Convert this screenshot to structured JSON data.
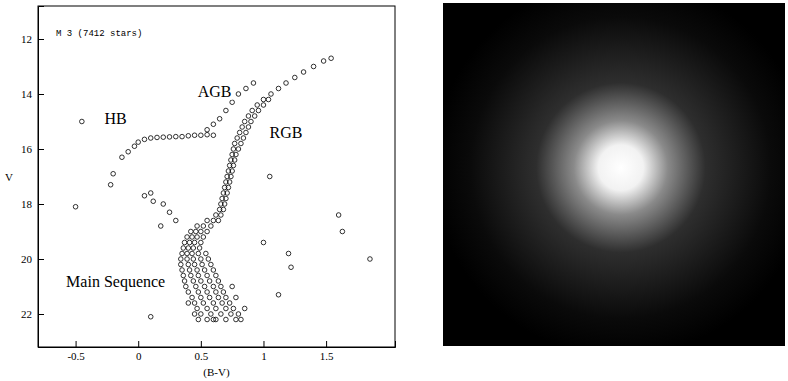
{
  "chart_data": {
    "type": "scatter",
    "title": "M 3 (7412 stars)",
    "x_label": "(B-V)",
    "y_label": "V",
    "marker": "open_circle",
    "color": "#000000",
    "xlim": [
      -0.8,
      2.05
    ],
    "ylim": [
      23.2,
      10.8
    ],
    "xticks": [
      -0.5,
      0,
      0.5,
      1,
      1.5
    ],
    "yticks": [
      12,
      14,
      16,
      18,
      20,
      22
    ],
    "annotations": [
      {
        "text": "HB",
        "x": -0.18,
        "y": 15.1
      },
      {
        "text": "AGB",
        "x": 0.61,
        "y": 14.1
      },
      {
        "text": "RGB",
        "x": 1.18,
        "y": 15.6
      },
      {
        "text": "Main Sequence",
        "x": -0.18,
        "y": 21.0
      }
    ],
    "x": [
      0.55,
      0.62,
      0.7,
      0.78,
      0.82,
      0.48,
      0.6,
      0.5,
      0.58,
      0.66,
      0.74,
      0.8,
      0.45,
      0.47,
      0.55,
      0.62,
      0.7,
      0.76,
      0.85,
      0.45,
      0.52,
      0.6,
      0.67,
      0.73,
      0.4,
      0.43,
      0.5,
      0.57,
      0.64,
      0.7,
      0.78,
      0.4,
      0.48,
      0.55,
      0.62,
      0.68,
      0.38,
      0.46,
      0.53,
      0.6,
      0.66,
      0.75,
      0.37,
      0.44,
      0.5,
      0.57,
      0.64,
      0.36,
      0.42,
      0.48,
      0.55,
      0.62,
      0.35,
      0.41,
      0.47,
      0.53,
      0.6,
      0.34,
      0.4,
      0.45,
      0.51,
      0.58,
      0.34,
      0.39,
      0.44,
      0.5,
      0.56,
      0.35,
      0.39,
      0.43,
      0.48,
      0.54,
      0.36,
      0.4,
      0.44,
      0.49,
      0.37,
      0.41,
      0.45,
      0.5,
      0.39,
      0.43,
      0.47,
      0.52,
      0.42,
      0.46,
      0.5,
      0.55,
      0.47,
      0.52,
      0.58,
      0.55,
      0.6,
      0.64,
      0.62,
      0.66,
      0.65,
      0.68,
      0.66,
      0.69,
      0.67,
      0.7,
      0.68,
      0.71,
      0.69,
      0.72,
      0.7,
      0.73,
      0.71,
      0.74,
      0.72,
      0.75,
      0.73,
      0.76,
      0.74,
      0.77,
      0.75,
      0.78,
      0.76,
      0.8,
      0.77,
      0.82,
      0.79,
      0.84,
      0.81,
      0.86,
      0.83,
      0.88,
      0.85,
      0.9,
      0.88,
      0.93,
      0.91,
      0.96,
      0.95,
      1.0,
      1.0,
      1.04,
      1.06,
      1.12,
      1.18,
      1.25,
      1.32,
      1.4,
      1.48,
      1.54,
      0.55,
      0.6,
      0.65,
      0.7,
      0.75,
      0.8,
      0.86,
      0.92,
      -0.08,
      -0.03,
      0.0,
      0.05,
      0.1,
      0.15,
      0.2,
      0.25,
      0.3,
      0.35,
      0.4,
      0.45,
      0.5,
      0.55,
      0.6,
      -0.13,
      -0.2,
      -0.22,
      0.1,
      0.12,
      0.2,
      0.25,
      0.3,
      0.18,
      0.05,
      -0.45,
      -0.5,
      0.1,
      1.6,
      1.63,
      1.85,
      1.2,
      1.22,
      1.12,
      1.0,
      1.05
    ],
    "y": [
      22.2,
      22.2,
      22.2,
      22.2,
      22.2,
      22.2,
      22.2,
      22.0,
      22.0,
      22.0,
      22.0,
      22.0,
      22.0,
      21.8,
      21.8,
      21.8,
      21.8,
      21.8,
      21.8,
      21.6,
      21.6,
      21.6,
      21.6,
      21.6,
      21.6,
      21.4,
      21.4,
      21.4,
      21.4,
      21.4,
      21.4,
      21.2,
      21.2,
      21.2,
      21.2,
      21.2,
      21.0,
      21.0,
      21.0,
      21.0,
      21.0,
      21.0,
      20.8,
      20.8,
      20.8,
      20.8,
      20.8,
      20.6,
      20.6,
      20.6,
      20.6,
      20.6,
      20.4,
      20.4,
      20.4,
      20.4,
      20.4,
      20.2,
      20.2,
      20.2,
      20.2,
      20.2,
      20.0,
      20.0,
      20.0,
      20.0,
      20.0,
      19.8,
      19.8,
      19.8,
      19.8,
      19.8,
      19.6,
      19.6,
      19.6,
      19.6,
      19.4,
      19.4,
      19.4,
      19.4,
      19.2,
      19.2,
      19.2,
      19.2,
      19.0,
      19.0,
      19.0,
      19.0,
      18.8,
      18.8,
      18.8,
      18.6,
      18.6,
      18.6,
      18.4,
      18.4,
      18.2,
      18.2,
      18.0,
      18.0,
      17.8,
      17.8,
      17.6,
      17.6,
      17.4,
      17.4,
      17.2,
      17.2,
      17.0,
      17.0,
      16.8,
      16.8,
      16.6,
      16.6,
      16.4,
      16.4,
      16.2,
      16.2,
      16.0,
      16.0,
      15.8,
      15.8,
      15.6,
      15.6,
      15.4,
      15.4,
      15.2,
      15.2,
      15.0,
      15.0,
      14.8,
      14.8,
      14.6,
      14.6,
      14.4,
      14.4,
      14.2,
      14.2,
      14.0,
      13.8,
      13.6,
      13.4,
      13.2,
      13.0,
      12.8,
      12.7,
      15.3,
      15.1,
      14.9,
      14.6,
      14.3,
      14.0,
      13.8,
      13.6,
      16.1,
      15.9,
      15.75,
      15.65,
      15.6,
      15.58,
      15.57,
      15.56,
      15.55,
      15.55,
      15.52,
      15.5,
      15.5,
      15.48,
      15.5,
      16.3,
      16.9,
      17.3,
      17.6,
      17.9,
      18.0,
      18.3,
      18.6,
      18.8,
      17.7,
      15.0,
      18.1,
      22.1,
      18.4,
      19.0,
      20.0,
      19.8,
      20.3,
      21.3,
      19.4,
      17.0
    ]
  }
}
